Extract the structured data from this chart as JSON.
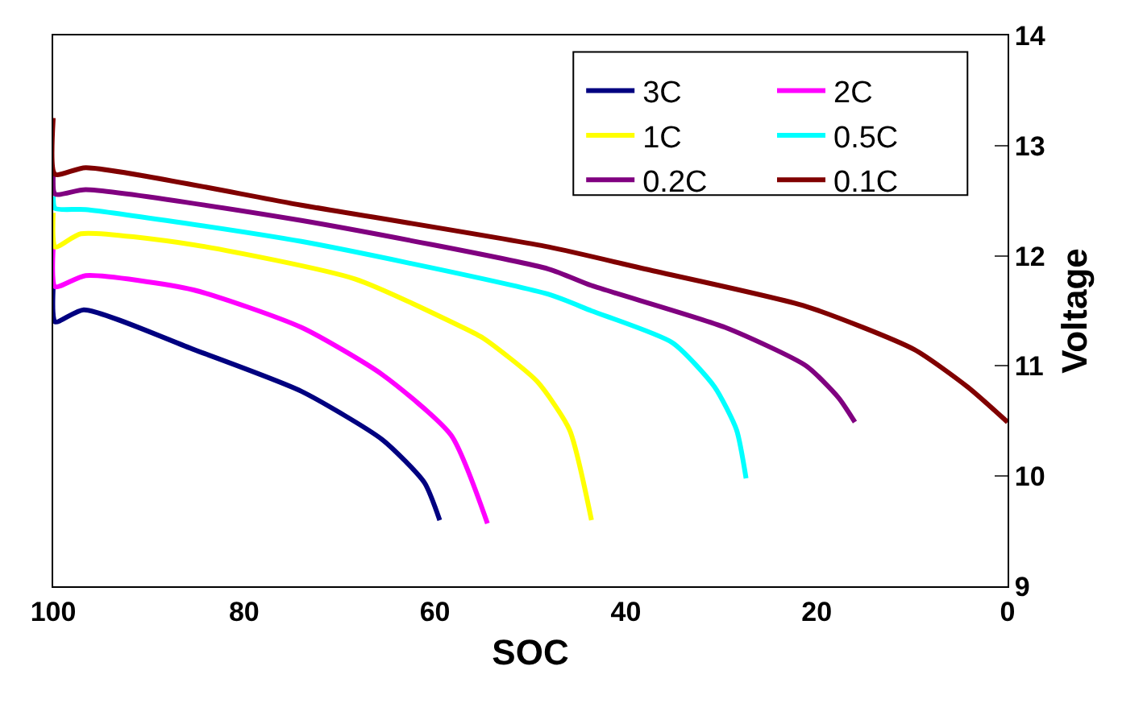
{
  "chart_data": {
    "type": "line",
    "xlabel": "SOC",
    "ylabel": "Voltage",
    "xlim": [
      100,
      0
    ],
    "xticks": [
      100,
      80,
      60,
      40,
      20,
      0
    ],
    "ylim": [
      9,
      14
    ],
    "yticks": [
      9,
      10,
      11,
      12,
      13,
      14
    ],
    "legend": "top right",
    "marker": "none",
    "line_style": "solid",
    "series": [
      {
        "name": "3C",
        "color": "#000080",
        "x": [
          100,
          99.8,
          96.8,
          85.3,
          74,
          65.5,
          61.1,
          59.5
        ],
        "values": [
          11.72,
          11.4,
          11.51,
          11.15,
          10.77,
          10.33,
          9.94,
          9.6
        ]
      },
      {
        "name": "2C",
        "color": "#ff00ff",
        "x": [
          100,
          99.8,
          96.6,
          85.3,
          74,
          65.5,
          58.3,
          54.5
        ],
        "values": [
          12.08,
          11.72,
          11.82,
          11.69,
          11.35,
          10.92,
          10.37,
          9.57
        ]
      },
      {
        "name": "1C",
        "color": "#ffff00",
        "x": [
          100,
          99.8,
          97.1,
          85.3,
          68.4,
          57.1,
          54.9,
          49.3,
          45.9,
          43.6
        ],
        "values": [
          12.39,
          12.08,
          12.2,
          12.1,
          11.79,
          11.35,
          11.25,
          10.86,
          10.42,
          9.6
        ]
      },
      {
        "name": "0.5C",
        "color": "#00ffff",
        "x": [
          100,
          99.8,
          96.6,
          74,
          48.1,
          43.6,
          35.1,
          30.7,
          28.4,
          27.4
        ],
        "values": [
          12.54,
          12.43,
          12.42,
          12.13,
          11.65,
          11.5,
          11.21,
          10.81,
          10.42,
          9.98
        ]
      },
      {
        "name": "0.2C",
        "color": "#800080",
        "x": [
          100,
          99.8,
          96.6,
          74,
          48.1,
          43.6,
          29.6,
          21.1,
          17.7,
          16.0
        ],
        "values": [
          12.74,
          12.56,
          12.6,
          12.32,
          11.88,
          11.73,
          11.35,
          11.0,
          10.71,
          10.49
        ]
      },
      {
        "name": "0.1C",
        "color": "#800000",
        "x": [
          100,
          99.8,
          96.6,
          74,
          48.1,
          38,
          21.1,
          9.8,
          4.2,
          0
        ],
        "values": [
          13.25,
          12.74,
          12.8,
          12.46,
          12.08,
          11.88,
          11.54,
          11.15,
          10.81,
          10.49
        ]
      }
    ]
  }
}
